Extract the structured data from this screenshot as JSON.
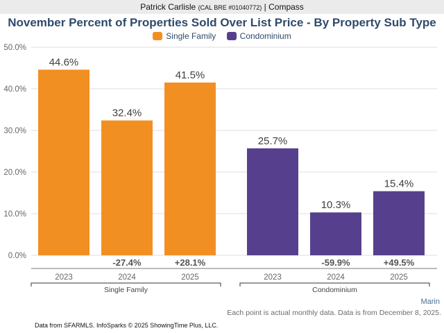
{
  "header": {
    "agent_name": "Patrick Carlisle",
    "license": "(CAL BRE #01040772)",
    "separator": "|",
    "brokerage": "Compass"
  },
  "colors": {
    "single_family": "#f28f22",
    "condominium": "#56408e",
    "title": "#2f4a6b",
    "grid": "#dcdcdc",
    "axis_text": "#666666",
    "value_text": "#404040"
  },
  "chart_data": {
    "type": "bar",
    "title": "November Percent of Properties Sold Over List Price - By Property Sub Type",
    "xlabel": "",
    "ylabel": "",
    "ylim": [
      0,
      50
    ],
    "yticks": [
      0,
      10,
      20,
      30,
      40,
      50
    ],
    "ytick_labels": [
      "0.0%",
      "10.0%",
      "20.0%",
      "30.0%",
      "40.0%",
      "50.0%"
    ],
    "grid": true,
    "legend_position": "top-center",
    "legend": [
      "Single Family",
      "Condominium"
    ],
    "categories": [
      "2023",
      "2024",
      "2025"
    ],
    "series": [
      {
        "name": "Single Family",
        "group_label": "Single Family",
        "color": "#f28f22",
        "values": [
          44.6,
          32.4,
          41.5
        ],
        "value_labels": [
          "44.6%",
          "32.4%",
          "41.5%"
        ],
        "change_labels": [
          "",
          "-27.4%",
          "+28.1%"
        ]
      },
      {
        "name": "Condominium",
        "group_label": "Condominium",
        "color": "#56408e",
        "values": [
          25.7,
          10.3,
          15.4
        ],
        "value_labels": [
          "25.7%",
          "10.3%",
          "15.4%"
        ],
        "change_labels": [
          "",
          "-59.9%",
          "+49.5%"
        ]
      }
    ]
  },
  "footer": {
    "region": "Marin",
    "note": "Each point is actual monthly data. Data is from December 8, 2025.",
    "credit": "Data from SFARMLS. InfoSparks © 2025 ShowingTime Plus, LLC."
  }
}
